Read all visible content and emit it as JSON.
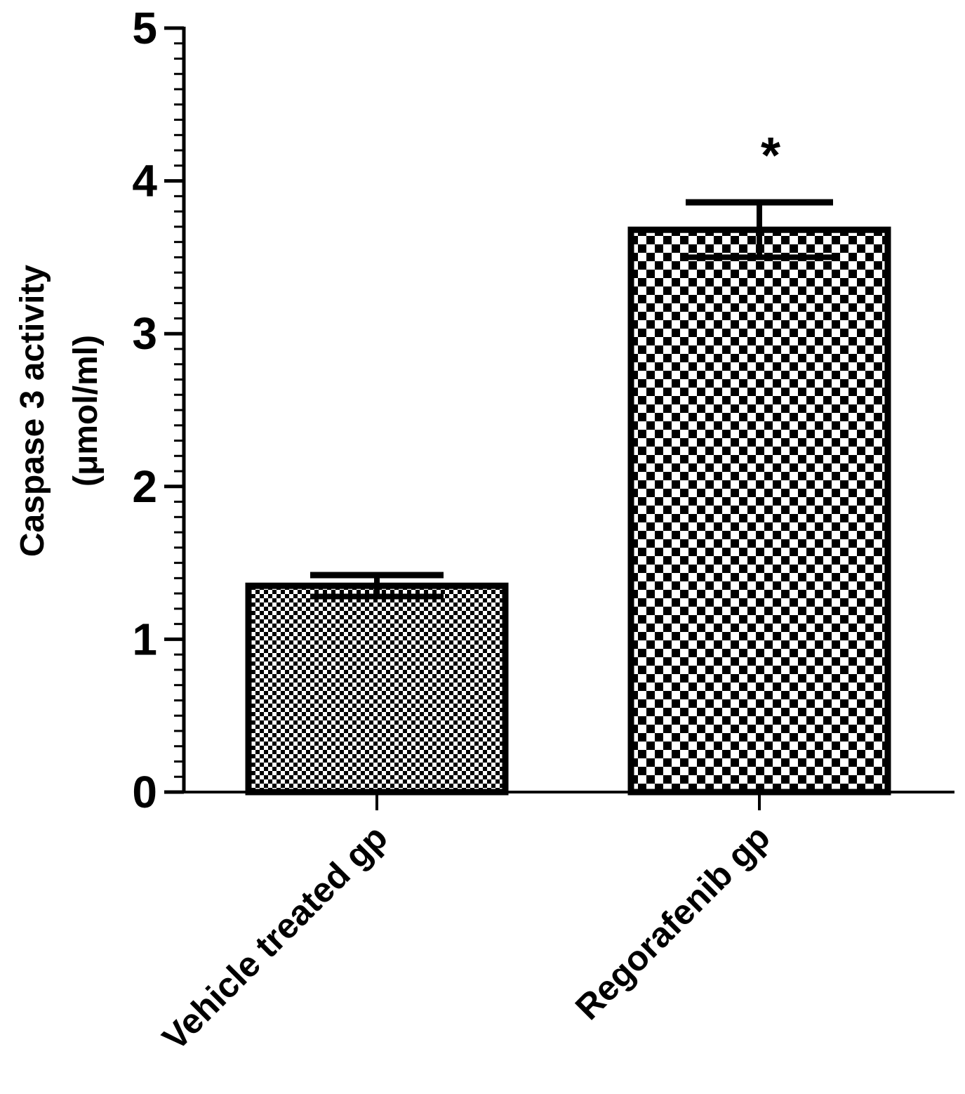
{
  "chart_data": {
    "type": "bar",
    "categories": [
      "Vehicle treated gp",
      "Regorafenib gp"
    ],
    "values": [
      1.35,
      3.68
    ],
    "errors": [
      0.07,
      0.18
    ],
    "annotations": [
      "",
      "*"
    ],
    "ylabel_line1": "Caspase 3 activity",
    "ylabel_line2": "(μmol/ml)",
    "xlabel": "",
    "ylim": [
      0,
      5
    ],
    "yticks": [
      "0",
      "1",
      "2",
      "3",
      "4",
      "5"
    ],
    "grid": false,
    "bar_fill": "checkerboard",
    "colors": {
      "ink": "#000000",
      "background": "#ffffff"
    }
  }
}
